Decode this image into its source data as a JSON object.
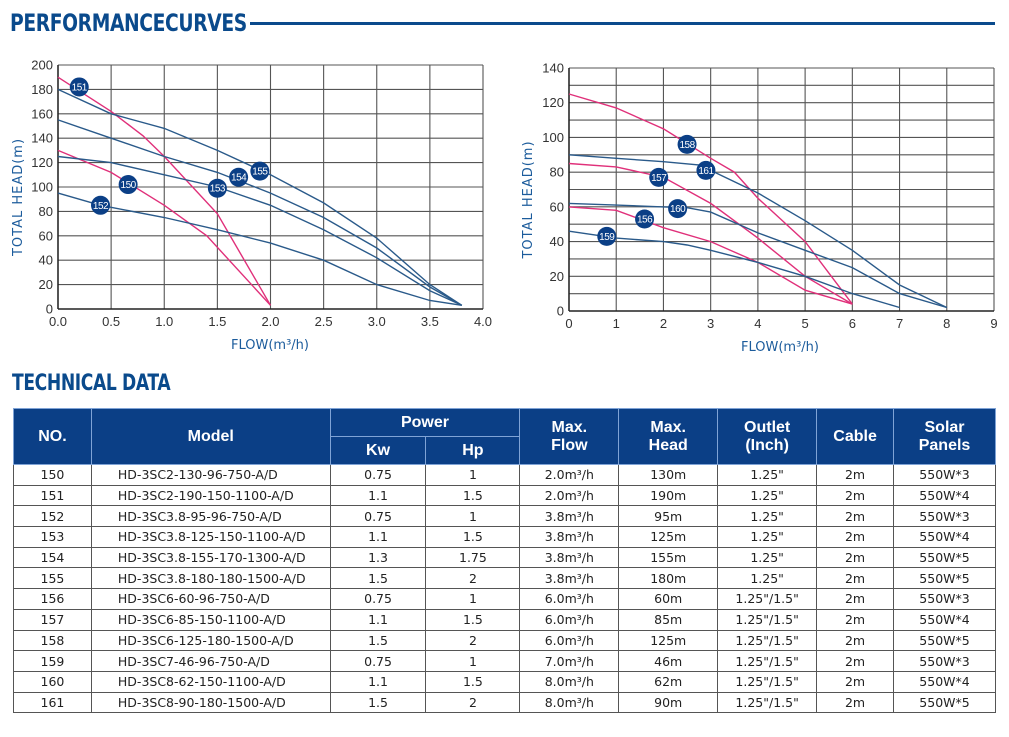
{
  "header": {
    "performance_title": "PERFORMANCECURVES",
    "technical_title": "TECHNICAL DATA"
  },
  "chart_data": [
    {
      "type": "line",
      "title": "",
      "xlabel": "FLOW(m³/h)",
      "ylabel": "TOTAL HEAD(m)",
      "xlim": [
        0,
        4.0
      ],
      "ylim": [
        0,
        200
      ],
      "xticks": [
        "0.0",
        "0.5",
        "1.0",
        "1.5",
        "2.0",
        "2.5",
        "3.0",
        "3.5",
        "4.0"
      ],
      "yticks": [
        "0",
        "20",
        "40",
        "60",
        "80",
        "100",
        "120",
        "140",
        "160",
        "180",
        "200"
      ],
      "grid": true,
      "legend": "inline-badges",
      "series": [
        {
          "name": "150",
          "color": "#e0307a",
          "points": [
            [
              0,
              130
            ],
            [
              0.5,
              112
            ],
            [
              1.0,
              85
            ],
            [
              1.4,
              60
            ],
            [
              2.0,
              3
            ]
          ],
          "label_at": [
            0.66,
            102
          ]
        },
        {
          "name": "151",
          "color": "#e0307a",
          "points": [
            [
              0,
              190
            ],
            [
              0.5,
              162
            ],
            [
              0.8,
              142
            ],
            [
              1.0,
              125
            ],
            [
              1.5,
              78
            ],
            [
              2.0,
              3
            ]
          ],
          "label_at": [
            0.2,
            182
          ]
        },
        {
          "name": "152",
          "color": "#2a5a8a",
          "points": [
            [
              0,
              95
            ],
            [
              0.4,
              85
            ],
            [
              1.0,
              75
            ],
            [
              1.5,
              65
            ],
            [
              2.0,
              54
            ],
            [
              2.5,
              40
            ],
            [
              3.0,
              20
            ],
            [
              3.5,
              7
            ],
            [
              3.8,
              3
            ]
          ],
          "label_at": [
            0.4,
            85
          ]
        },
        {
          "name": "153",
          "color": "#2a5a8a",
          "points": [
            [
              0,
              125
            ],
            [
              0.5,
              120
            ],
            [
              1.0,
              110
            ],
            [
              1.5,
              100
            ],
            [
              2.0,
              85
            ],
            [
              2.5,
              65
            ],
            [
              3.0,
              42
            ],
            [
              3.5,
              15
            ],
            [
              3.8,
              3
            ]
          ],
          "label_at": [
            1.5,
            99
          ]
        },
        {
          "name": "154",
          "color": "#2a5a8a",
          "points": [
            [
              0,
              155
            ],
            [
              0.5,
              140
            ],
            [
              1.0,
              125
            ],
            [
              1.5,
              112
            ],
            [
              2.0,
              95
            ],
            [
              2.5,
              75
            ],
            [
              3.0,
              50
            ],
            [
              3.5,
              18
            ],
            [
              3.8,
              3
            ]
          ],
          "label_at": [
            1.7,
            108
          ]
        },
        {
          "name": "155",
          "color": "#2a5a8a",
          "points": [
            [
              0,
              180
            ],
            [
              0.5,
              160
            ],
            [
              1.0,
              148
            ],
            [
              1.5,
              130
            ],
            [
              2.0,
              110
            ],
            [
              2.5,
              87
            ],
            [
              3.0,
              58
            ],
            [
              3.5,
              20
            ],
            [
              3.8,
              3
            ]
          ],
          "label_at": [
            1.9,
            113
          ]
        }
      ]
    },
    {
      "type": "line",
      "title": "",
      "xlabel": "FLOW(m³/h)",
      "ylabel": "TOTAL HEAD(m)",
      "xlim": [
        0,
        9
      ],
      "ylim": [
        0,
        140
      ],
      "xticks": [
        "0",
        "1",
        "2",
        "3",
        "4",
        "5",
        "6",
        "7",
        "8",
        "9"
      ],
      "yticks": [
        "0",
        "20",
        "40",
        "60",
        "80",
        "100",
        "120",
        "140"
      ],
      "grid": true,
      "legend": "inline-badges",
      "series": [
        {
          "name": "156",
          "color": "#e0307a",
          "points": [
            [
              0,
              60
            ],
            [
              1,
              58
            ],
            [
              2,
              48
            ],
            [
              3,
              40
            ],
            [
              4,
              28
            ],
            [
              5,
              12
            ],
            [
              6,
              4
            ]
          ],
          "label_at": [
            1.6,
            53
          ]
        },
        {
          "name": "157",
          "color": "#e0307a",
          "points": [
            [
              0,
              85
            ],
            [
              1,
              83
            ],
            [
              2,
              77
            ],
            [
              3,
              62
            ],
            [
              4,
              42
            ],
            [
              5,
              20
            ],
            [
              6,
              4
            ]
          ],
          "label_at": [
            1.9,
            77
          ]
        },
        {
          "name": "158",
          "color": "#e0307a",
          "points": [
            [
              0,
              125
            ],
            [
              1,
              117
            ],
            [
              2,
              105
            ],
            [
              3,
              88
            ],
            [
              3.5,
              80
            ],
            [
              4,
              65
            ],
            [
              5,
              40
            ],
            [
              6,
              4
            ]
          ],
          "label_at": [
            2.5,
            96
          ]
        },
        {
          "name": "159",
          "color": "#2a5a8a",
          "points": [
            [
              0,
              46
            ],
            [
              1,
              42
            ],
            [
              2,
              40
            ],
            [
              2.5,
              38
            ],
            [
              3,
              35
            ],
            [
              4,
              28
            ],
            [
              5,
              20
            ],
            [
              6,
              10
            ],
            [
              7,
              2
            ]
          ],
          "label_at": [
            0.8,
            43
          ]
        },
        {
          "name": "160",
          "color": "#2a5a8a",
          "points": [
            [
              0,
              62
            ],
            [
              1,
              61
            ],
            [
              2,
              60
            ],
            [
              2.5,
              59.5
            ],
            [
              3,
              57
            ],
            [
              4,
              45
            ],
            [
              5,
              35
            ],
            [
              6,
              25
            ],
            [
              7,
              10
            ],
            [
              8,
              2
            ]
          ],
          "label_at": [
            2.3,
            59
          ]
        },
        {
          "name": "161",
          "color": "#2a5a8a",
          "points": [
            [
              0,
              90
            ],
            [
              1,
              88
            ],
            [
              2,
              86
            ],
            [
              2.8,
              84
            ],
            [
              3,
              81
            ],
            [
              4,
              68
            ],
            [
              5,
              52
            ],
            [
              6,
              35
            ],
            [
              7,
              15
            ],
            [
              8,
              2
            ]
          ],
          "label_at": [
            2.9,
            81
          ]
        }
      ]
    }
  ],
  "table": {
    "headers": {
      "no": "NO.",
      "model": "Model",
      "power": "Power",
      "kw": "Kw",
      "hp": "Hp",
      "max_flow": [
        "Max.",
        "Flow"
      ],
      "max_head": [
        "Max.",
        "Head"
      ],
      "outlet": [
        "Outlet",
        "(Inch)"
      ],
      "cable": "Cable",
      "solar": [
        "Solar",
        "Panels"
      ]
    },
    "rows": [
      {
        "no": "150",
        "model": "HD-3SC2-130-96-750-A/D",
        "kw": "0.75",
        "hp": "1",
        "flow": "2.0m³/h",
        "head": "130m",
        "outlet": "1.25\"",
        "cable": "2m",
        "solar": "550W*3"
      },
      {
        "no": "151",
        "model": "HD-3SC2-190-150-1100-A/D",
        "kw": "1.1",
        "hp": "1.5",
        "flow": "2.0m³/h",
        "head": "190m",
        "outlet": "1.25\"",
        "cable": "2m",
        "solar": "550W*4"
      },
      {
        "no": "152",
        "model": "HD-3SC3.8-95-96-750-A/D",
        "kw": "0.75",
        "hp": "1",
        "flow": "3.8m³/h",
        "head": "95m",
        "outlet": "1.25\"",
        "cable": "2m",
        "solar": "550W*3"
      },
      {
        "no": "153",
        "model": "HD-3SC3.8-125-150-1100-A/D",
        "kw": "1.1",
        "hp": "1.5",
        "flow": "3.8m³/h",
        "head": "125m",
        "outlet": "1.25\"",
        "cable": "2m",
        "solar": "550W*4"
      },
      {
        "no": "154",
        "model": "HD-3SC3.8-155-170-1300-A/D",
        "kw": "1.3",
        "hp": "1.75",
        "flow": "3.8m³/h",
        "head": "155m",
        "outlet": "1.25\"",
        "cable": "2m",
        "solar": "550W*5"
      },
      {
        "no": "155",
        "model": "HD-3SC3.8-180-180-1500-A/D",
        "kw": "1.5",
        "hp": "2",
        "flow": "3.8m³/h",
        "head": "180m",
        "outlet": "1.25\"",
        "cable": "2m",
        "solar": "550W*5"
      },
      {
        "no": "156",
        "model": "HD-3SC6-60-96-750-A/D",
        "kw": "0.75",
        "hp": "1",
        "flow": "6.0m³/h",
        "head": "60m",
        "outlet": "1.25\"/1.5\"",
        "cable": "2m",
        "solar": "550W*3"
      },
      {
        "no": "157",
        "model": "HD-3SC6-85-150-1100-A/D",
        "kw": "1.1",
        "hp": "1.5",
        "flow": "6.0m³/h",
        "head": "85m",
        "outlet": "1.25\"/1.5\"",
        "cable": "2m",
        "solar": "550W*4"
      },
      {
        "no": "158",
        "model": "HD-3SC6-125-180-1500-A/D",
        "kw": "1.5",
        "hp": "2",
        "flow": "6.0m³/h",
        "head": "125m",
        "outlet": "1.25\"/1.5\"",
        "cable": "2m",
        "solar": "550W*5"
      },
      {
        "no": "159",
        "model": "HD-3SC7-46-96-750-A/D",
        "kw": "0.75",
        "hp": "1",
        "flow": "7.0m³/h",
        "head": "46m",
        "outlet": "1.25\"/1.5\"",
        "cable": "2m",
        "solar": "550W*3"
      },
      {
        "no": "160",
        "model": "HD-3SC8-62-150-1100-A/D",
        "kw": "1.1",
        "hp": "1.5",
        "flow": "8.0m³/h",
        "head": "62m",
        "outlet": "1.25\"/1.5\"",
        "cable": "2m",
        "solar": "550W*4"
      },
      {
        "no": "161",
        "model": "HD-3SC8-90-180-1500-A/D",
        "kw": "1.5",
        "hp": "2",
        "flow": "8.0m³/h",
        "head": "90m",
        "outlet": "1.25\"/1.5\"",
        "cable": "2m",
        "solar": "550W*5"
      }
    ]
  }
}
